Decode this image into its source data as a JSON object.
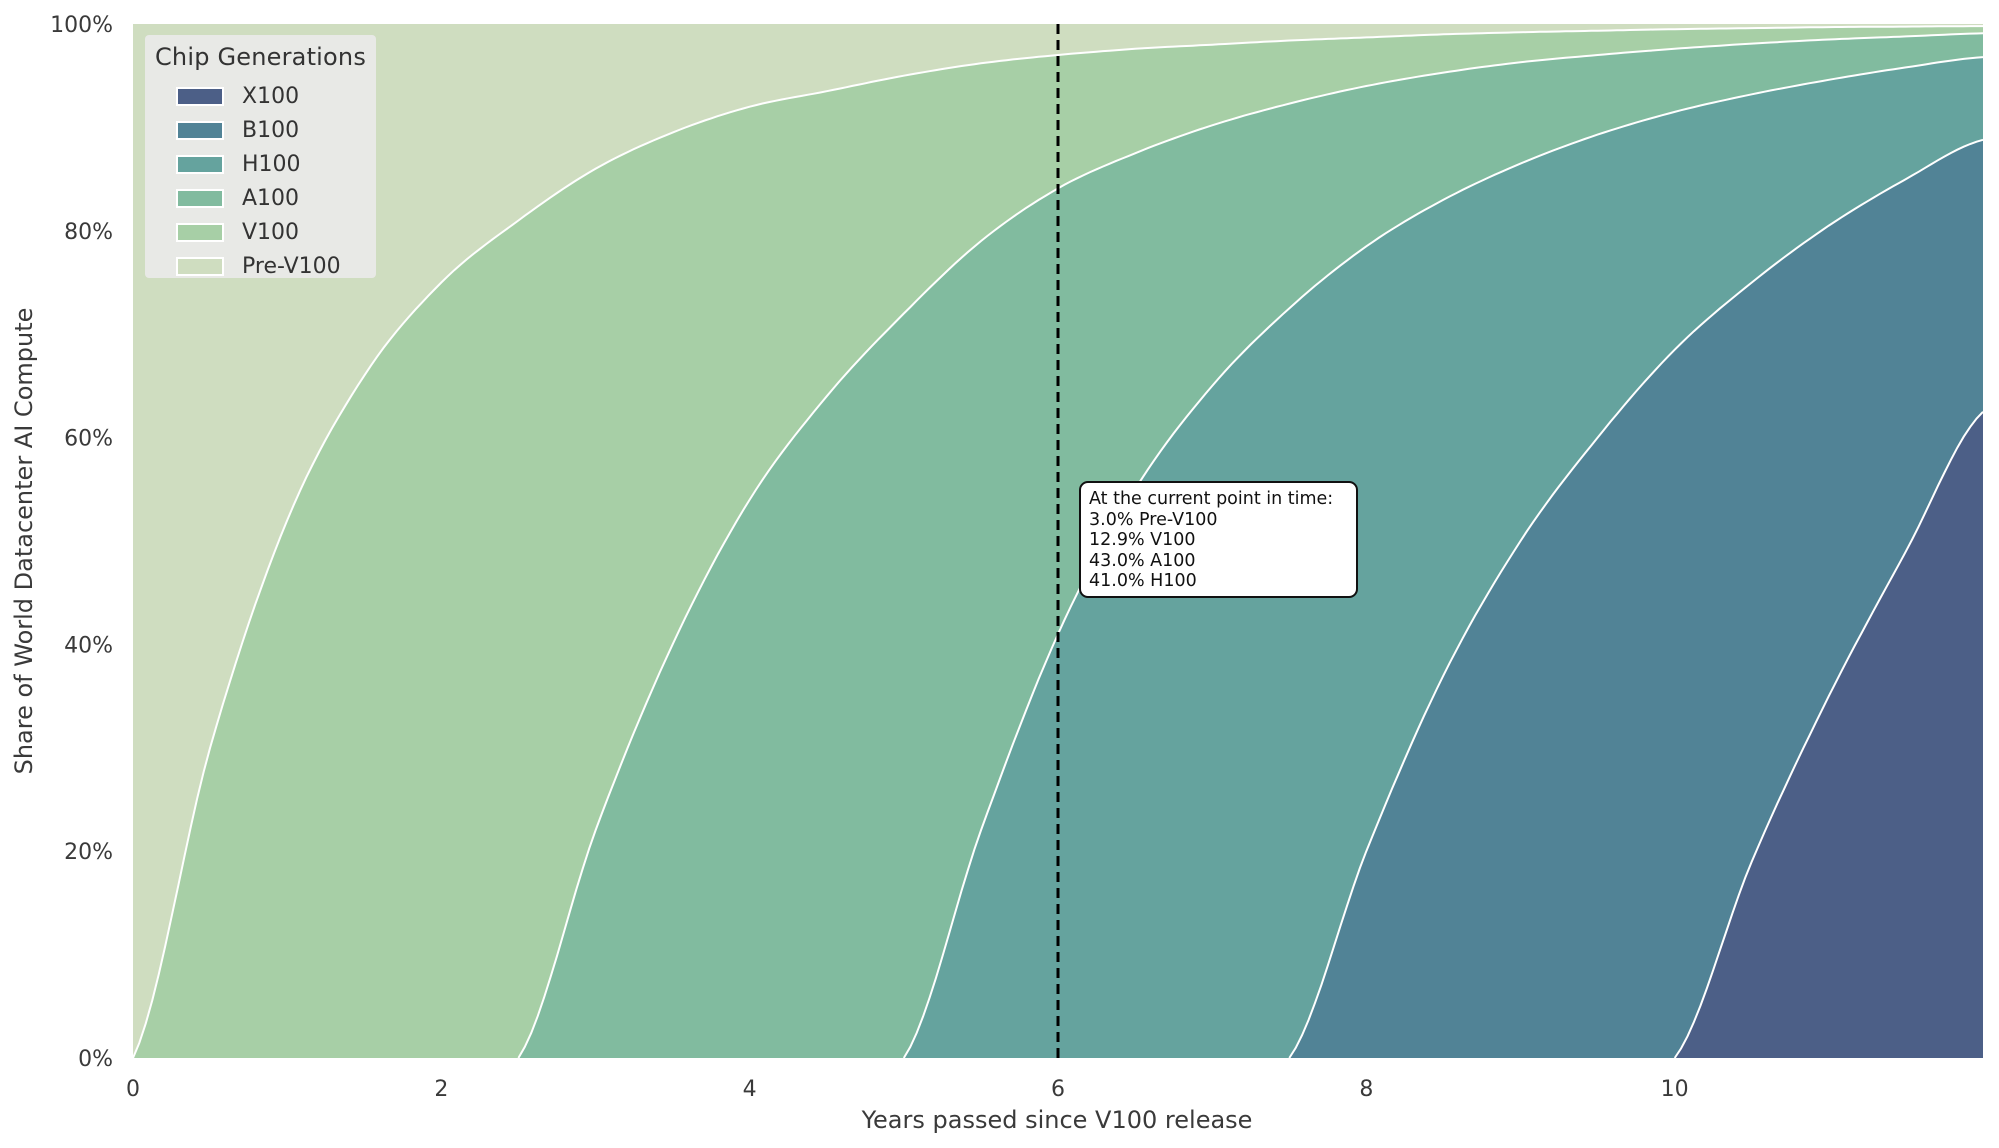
{
  "chart_data": {
    "type": "area",
    "stacked": true,
    "title": "",
    "xlabel": "Years passed since V100 release",
    "ylabel": "Share of World Datacenter AI Compute",
    "xlim": [
      0,
      12
    ],
    "ylim": [
      0,
      100
    ],
    "x_ticks": [
      0,
      2,
      4,
      6,
      8,
      10
    ],
    "x_tick_labels": [
      "0",
      "2",
      "4",
      "6",
      "8",
      "10"
    ],
    "y_ticks": [
      0,
      20,
      40,
      60,
      80,
      100
    ],
    "y_tick_labels": [
      "0%",
      "20%",
      "40%",
      "60%",
      "80%",
      "100%"
    ],
    "grid": false,
    "legend_position": "upper left",
    "legend_title": "Chip Generations",
    "x": [
      0,
      0.5,
      1,
      1.5,
      2,
      2.5,
      3,
      3.5,
      4,
      4.5,
      5,
      5.5,
      6,
      6.5,
      7,
      7.5,
      8,
      8.5,
      9,
      9.5,
      10,
      10.5,
      11,
      11.5,
      12
    ],
    "cumulative_note": "Each series value below is the cumulative share (%) of that generation AND all newer ones; band = difference to next-newer series.",
    "series": [
      {
        "name": "Pre-V100",
        "release_year": null,
        "color": "#CFDDC0",
        "cumulative": [
          100,
          100,
          100,
          100,
          100,
          100,
          100,
          100,
          100,
          100,
          100,
          100,
          100,
          100,
          100,
          100,
          100,
          100,
          100,
          100,
          100,
          100,
          100,
          100,
          100
        ]
      },
      {
        "name": "V100",
        "release_year": 0,
        "color": "#A7CFA6",
        "cumulative": [
          0,
          30,
          52,
          66,
          75,
          81,
          86,
          89.5,
          92,
          93.5,
          95,
          96.2,
          97,
          97.6,
          98,
          98.4,
          98.7,
          99,
          99.2,
          99.35,
          99.5,
          99.6,
          99.7,
          99.75,
          99.8
        ]
      },
      {
        "name": "A100",
        "release_year": 2.5,
        "color": "#81BB9F",
        "cumulative": [
          0,
          0,
          0,
          0,
          0,
          0,
          22,
          40,
          54,
          64,
          72,
          79,
          84.1,
          87.5,
          90.2,
          92.3,
          94,
          95.3,
          96.3,
          97,
          97.6,
          98.1,
          98.5,
          98.8,
          99.1
        ]
      },
      {
        "name": "H100",
        "release_year": 5,
        "color": "#65A39E",
        "cumulative": [
          0,
          0,
          0,
          0,
          0,
          0,
          0,
          0,
          0,
          0,
          0,
          22,
          41,
          55,
          65,
          72.5,
          78.5,
          83,
          86.5,
          89.3,
          91.5,
          93.2,
          94.6,
          95.8,
          96.8
        ]
      },
      {
        "name": "B100",
        "release_year": 7.5,
        "color": "#518396",
        "cumulative": [
          0,
          0,
          0,
          0,
          0,
          0,
          0,
          0,
          0,
          0,
          0,
          0,
          0,
          0,
          0,
          0,
          20,
          37,
          50,
          60,
          68.5,
          75,
          80.5,
          85,
          88.8
        ]
      },
      {
        "name": "X100",
        "release_year": 10,
        "color": "#4C5F87",
        "cumulative": [
          0,
          0,
          0,
          0,
          0,
          0,
          0,
          0,
          0,
          0,
          0,
          0,
          0,
          0,
          0,
          0,
          0,
          0,
          0,
          0,
          0,
          19,
          35,
          49,
          62.5
        ]
      }
    ],
    "vertical_line": {
      "x": 6,
      "style": "dashed",
      "color": "#000000"
    },
    "annotation": {
      "x": 6,
      "lines": [
        "At the current point in time:",
        "3.0% Pre-V100",
        "12.9% V100",
        "43.0% A100",
        "41.0% H100"
      ]
    }
  },
  "legend": {
    "title": "Chip Generations",
    "items": [
      {
        "label": "X100",
        "color": "#4C5F87"
      },
      {
        "label": "B100",
        "color": "#518396"
      },
      {
        "label": "H100",
        "color": "#65A39E"
      },
      {
        "label": "A100",
        "color": "#81BB9F"
      },
      {
        "label": "V100",
        "color": "#A7CFA6"
      },
      {
        "label": "Pre-V100",
        "color": "#CFDDC0"
      }
    ]
  },
  "annotation": {
    "lines": [
      "At the current point in time:",
      "3.0% Pre-V100",
      "12.9% V100",
      "43.0% A100",
      "41.0% H100"
    ]
  },
  "axes": {
    "xlabel": "Years passed since V100 release",
    "ylabel": "Share of World Datacenter AI Compute"
  }
}
